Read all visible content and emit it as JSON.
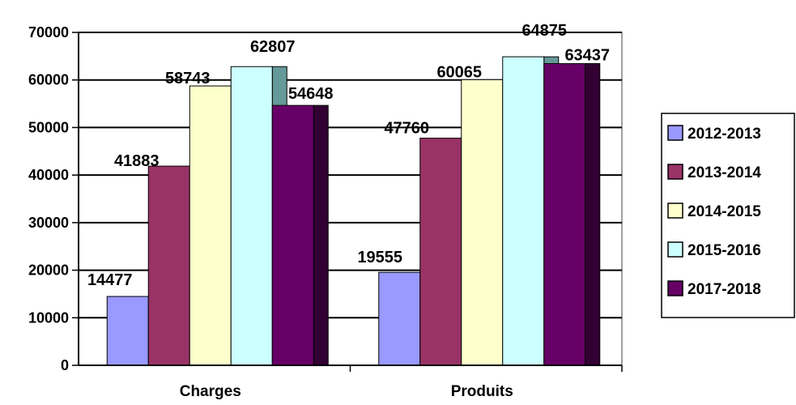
{
  "chart_data": {
    "type": "bar",
    "categories": [
      "Charges",
      "Produits"
    ],
    "series": [
      {
        "name": "2012-2013",
        "values": [
          14477,
          19555
        ],
        "color": "#9999ff",
        "side_color": "#6666cc"
      },
      {
        "name": "2013-2014",
        "values": [
          41883,
          47760
        ],
        "color": "#993366",
        "side_color": "#662244"
      },
      {
        "name": "2014-2015",
        "values": [
          58743,
          60065
        ],
        "color": "#ffffcc",
        "side_color": "#cccc99"
      },
      {
        "name": "2015-2016",
        "values": [
          62807,
          64875
        ],
        "color": "#ccffff",
        "side_color": "#669999"
      },
      {
        "name": "2017-2018",
        "values": [
          54648,
          63437
        ],
        "color": "#660066",
        "side_color": "#330033"
      }
    ],
    "ylim": [
      0,
      70000
    ],
    "yticks": [
      "0",
      "10000",
      "20000",
      "30000",
      "40000",
      "50000",
      "60000",
      "70000"
    ],
    "grid": true,
    "legend": "right",
    "title": "",
    "xlabel": "",
    "ylabel": ""
  }
}
